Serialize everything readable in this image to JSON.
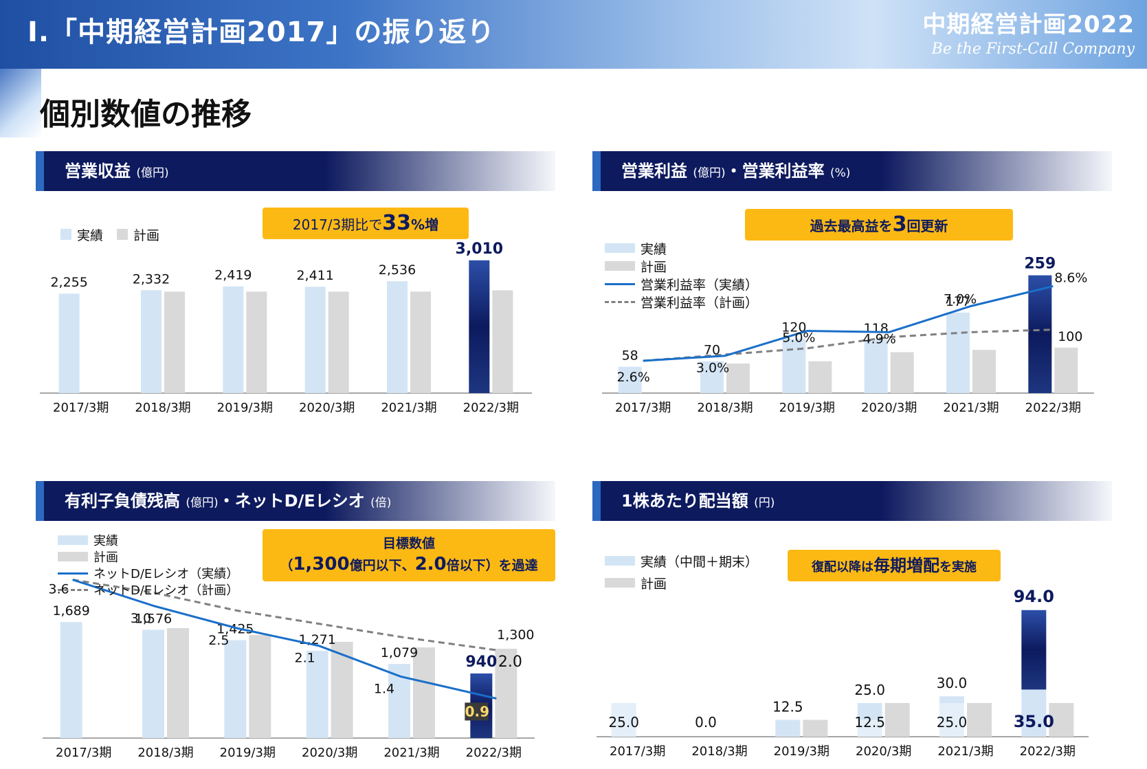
{
  "header": {
    "title": "Ⅰ.「中期経営計画2017」の振り返り",
    "brand": "中期経営計画2022",
    "tagline": "Be the First-Call Company"
  },
  "page_title": "個別数値の推移",
  "panels": [
    {
      "title": "営業収益",
      "unit": "(億円)",
      "unit2": "",
      "legend": [
        "実績",
        "計画"
      ],
      "callout": {
        "pre": "2017/3期比で",
        "big": "33",
        "post": "%増"
      }
    },
    {
      "title": "営業利益",
      "unit": "(億円)",
      "title2": "・営業利益率",
      "unit2": "(%)",
      "legend": [
        "実績",
        "計画",
        "営業利益率（実績）",
        "営業利益率（計画）"
      ],
      "callout": {
        "pre": "過去最高益を",
        "big": "3",
        "post": "回更新"
      }
    },
    {
      "title": "有利子負債残高",
      "unit": "(億円)",
      "title2": "・ネットD/Eレシオ",
      "unit2": "(倍)",
      "legend": [
        "実績",
        "計画",
        "ネットD/Eレシオ（実績）",
        "ネットD/Eレシオ（計画）"
      ],
      "callout": {
        "line1": "目標数値",
        "open": "（",
        "big1": "1,300",
        "mid1": "億円以下、",
        "big2": "2.0",
        "mid2": "倍以下）を過達"
      }
    },
    {
      "title": "1株あたり配当額",
      "unit": "(円)",
      "title2": "",
      "unit2": "",
      "legend": [
        "実績（中間＋期末）",
        "計画"
      ],
      "callout": {
        "pre": "復配以降は",
        "big": "毎期増配",
        "post": "を実施"
      }
    }
  ],
  "colors": {
    "navy": "#0d1a5e",
    "actual": "#d3e5f5",
    "plan": "#d9d9d9",
    "line_actual": "#1a6fc9",
    "line_plan": "#808080",
    "callout": "#fdb913"
  },
  "chart_data": [
    {
      "type": "bar",
      "title": "営業収益",
      "categories": [
        "2017/3期",
        "2018/3期",
        "2019/3期",
        "2020/3期",
        "2021/3期",
        "2022/3期"
      ],
      "series": [
        {
          "name": "実績",
          "values": [
            2255,
            2332,
            2419,
            2411,
            2536,
            3010
          ]
        },
        {
          "name": "計画",
          "values": [
            null,
            2300,
            2300,
            2300,
            2300,
            2330
          ]
        }
      ],
      "labels": [
        "2,255",
        "2,332",
        "2,419",
        "2,411",
        "2,536",
        "3,010"
      ],
      "ylim": [
        0,
        3100
      ]
    },
    {
      "type": "bar",
      "title": "営業利益・営業利益率",
      "categories": [
        "2017/3期",
        "2018/3期",
        "2019/3期",
        "2020/3期",
        "2021/3期",
        "2022/3期"
      ],
      "series": [
        {
          "name": "実績",
          "values": [
            58,
            70,
            120,
            118,
            177,
            259
          ]
        },
        {
          "name": "計画",
          "values": [
            null,
            65,
            70,
            90,
            95,
            100
          ]
        },
        {
          "name": "営業利益率（実績）",
          "values": [
            2.6,
            3.0,
            5.0,
            4.9,
            7.0,
            8.6
          ]
        },
        {
          "name": "営業利益率（計画）",
          "values": [
            2.6,
            3.1,
            3.6,
            4.5,
            4.9,
            5.1
          ]
        }
      ],
      "labels": [
        "58",
        "70",
        "120",
        "118",
        "177",
        "259"
      ],
      "plan_labels": [
        "",
        "",
        "",
        "",
        "",
        "100"
      ],
      "rate_labels": [
        "2.6%",
        "3.0%",
        "5.0%",
        "4.9%",
        "7.0%",
        "8.6%"
      ],
      "ylim": [
        0,
        275
      ],
      "rate_ylim": [
        0,
        11
      ]
    },
    {
      "type": "bar",
      "title": "有利子負債残高・ネットD/Eレシオ",
      "categories": [
        "2017/3期",
        "2018/3期",
        "2019/3期",
        "2020/3期",
        "2021/3期",
        "2022/3期"
      ],
      "series": [
        {
          "name": "実績",
          "values": [
            1689,
            1576,
            1425,
            1271,
            1079,
            940
          ]
        },
        {
          "name": "計画",
          "values": [
            null,
            1600,
            1500,
            1400,
            1320,
            1300
          ]
        },
        {
          "name": "ネットD/Eレシオ（実績）",
          "values": [
            3.6,
            3.0,
            2.5,
            2.1,
            1.4,
            0.9
          ]
        },
        {
          "name": "ネットD/Eレシオ（計画）",
          "values": [
            3.6,
            3.3,
            2.9,
            2.6,
            2.3,
            2.0
          ]
        }
      ],
      "labels": [
        "1,689",
        "1,576",
        "1,425",
        "1,271",
        "1,079",
        "940"
      ],
      "plan_labels": [
        "",
        "",
        "",
        "",
        "",
        "1,300"
      ],
      "ratio_labels": [
        "3.6",
        "3.0",
        "2.5",
        "2.1",
        "1.4",
        "0.9"
      ],
      "plan_ratio_labels": [
        "",
        "",
        "",
        "",
        "",
        "2.0"
      ],
      "ylim": [
        0,
        1800
      ],
      "ratio_ylim": [
        0,
        4
      ]
    },
    {
      "type": "bar",
      "title": "1株あたり配当額",
      "categories": [
        "2017/3期",
        "2018/3期",
        "2019/3期",
        "2020/3期",
        "2021/3期",
        "2022/3期"
      ],
      "series": [
        {
          "name": "実績（中間）",
          "values": [
            25.0,
            0.0,
            0,
            12.5,
            25.0,
            35.0
          ]
        },
        {
          "name": "実績（期末）",
          "values": [
            0,
            0,
            12.5,
            12.5,
            5.0,
            59.0
          ]
        },
        {
          "name": "計画",
          "values": [
            null,
            null,
            12.5,
            25.0,
            25.0,
            25.0
          ]
        }
      ],
      "total_labels": [
        "25.0",
        "0.0",
        "12.5",
        "25.0",
        "30.0",
        "94.0"
      ],
      "inner_labels": [
        "",
        "",
        "",
        "12.5",
        "25.0",
        "35.0"
      ],
      "ylim": [
        0,
        100
      ]
    }
  ]
}
